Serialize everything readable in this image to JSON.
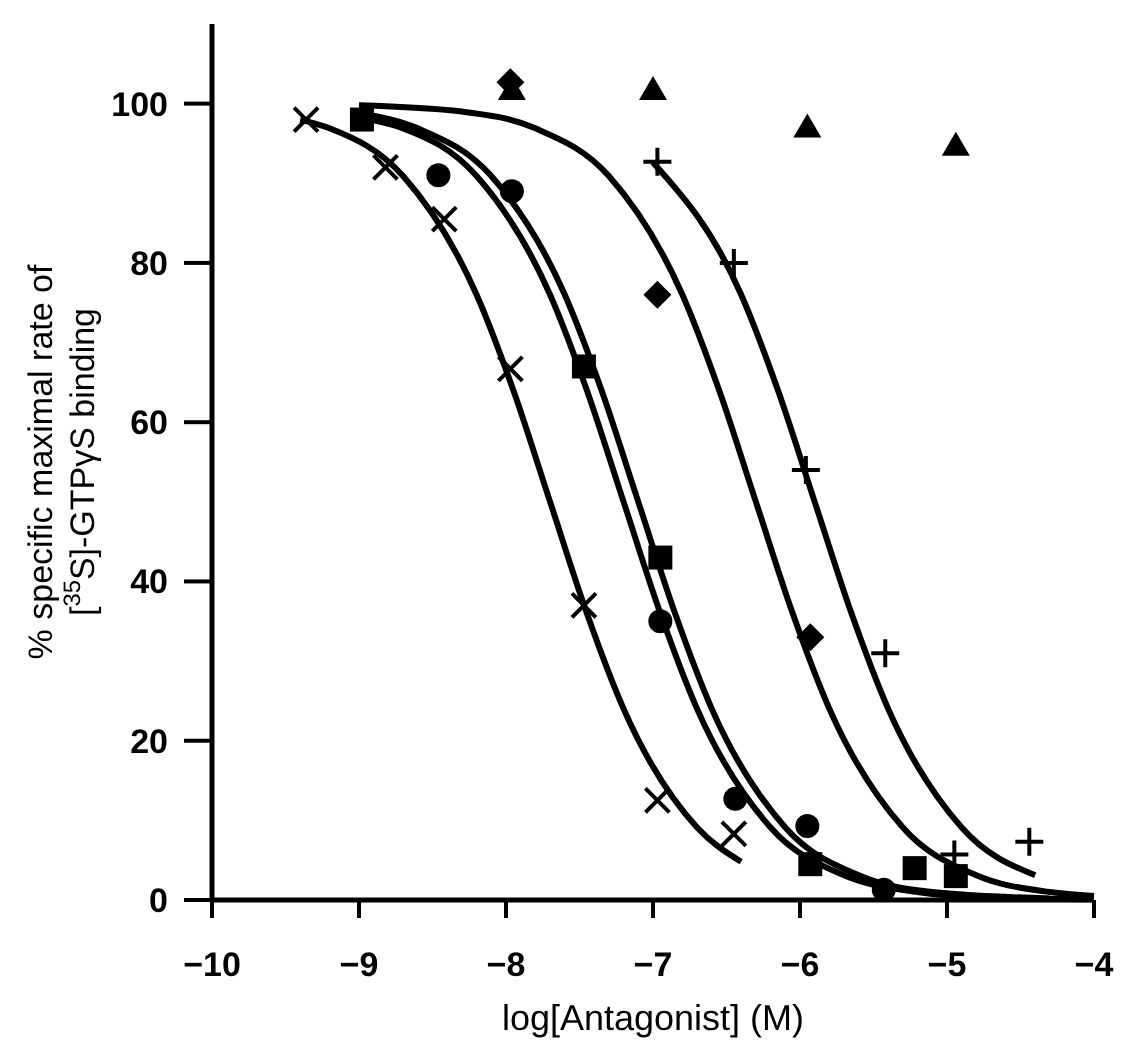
{
  "chart_data": {
    "type": "scatter",
    "xlabel": "log[Antagonist] (M)",
    "ylabel": "% specific maximal rate of\n[$^{35}$S]-GTPγS binding",
    "xlim": [
      -10,
      -4
    ],
    "ylim": [
      0,
      110
    ],
    "xticks": [
      {
        "value": -10,
        "label": "−10"
      },
      {
        "value": -9,
        "label": "−9"
      },
      {
        "value": -8,
        "label": "−8"
      },
      {
        "value": -7,
        "label": "−7"
      },
      {
        "value": -6,
        "label": "−6"
      },
      {
        "value": -5,
        "label": "−5"
      },
      {
        "value": -4,
        "label": "−4"
      }
    ],
    "yticks": [
      0,
      20,
      40,
      60,
      80,
      100
    ],
    "grid": false,
    "series": [
      {
        "marker": "cross",
        "color": "#000000",
        "x": [
          -9.36,
          -8.82,
          -8.42,
          -7.97,
          -7.47,
          -6.97,
          -6.45
        ],
        "values": [
          98,
          92,
          85.5,
          66.7,
          37,
          12.5,
          8.3
        ]
      },
      {
        "marker": "square",
        "color": "#000000",
        "x": [
          -8.98,
          -7.47,
          -6.95,
          -5.93,
          -5.22,
          -4.94
        ],
        "values": [
          98,
          67,
          43,
          4.5,
          4,
          3
        ]
      },
      {
        "marker": "circle",
        "color": "#000000",
        "x": [
          -8.46,
          -7.96,
          -6.95,
          -6.44,
          -5.95,
          -5.43
        ],
        "values": [
          91,
          89,
          35,
          12.7,
          9.3,
          1.3
        ]
      },
      {
        "marker": "diamond",
        "color": "#000000",
        "x": [
          -7.97,
          -6.97,
          -5.93
        ],
        "values": [
          102.7,
          76,
          33
        ]
      },
      {
        "marker": "plus",
        "color": "#000000",
        "x": [
          -6.97,
          -6.45,
          -5.96,
          -5.42,
          -4.95,
          -4.44
        ],
        "values": [
          92.7,
          80,
          54,
          31,
          5.7,
          7.3
        ]
      },
      {
        "marker": "triangle",
        "color": "#000000",
        "x": [
          -7.96,
          -7.0,
          -5.95,
          -4.94
        ],
        "values": [
          101.7,
          101.7,
          97,
          94.7
        ]
      },
      {
        "type": "line",
        "marker": "none",
        "line_style": "solid",
        "color": "#000000",
        "x": [
          -9.4,
          -9.2,
          -8.7,
          -8.2,
          -7.95,
          -7.7,
          -7.45,
          -7.2,
          -6.7,
          -6.4
        ],
        "values": [
          98,
          96.9,
          90.9,
          76,
          64,
          50,
          36,
          24,
          9.1,
          4.8
        ]
      },
      {
        "type": "line",
        "marker": "none",
        "line_style": "solid",
        "color": "#000000",
        "x": [
          -9.0,
          -8.6,
          -8.1,
          -7.6,
          -7.35,
          -7.1,
          -6.85,
          -6.6,
          -6.1,
          -5.6,
          -5.1,
          -4.3
        ],
        "values": [
          98.8,
          96.9,
          90.9,
          76,
          64,
          50,
          36,
          24,
          9.1,
          3.1,
          1.0,
          0.2
        ]
      },
      {
        "type": "line",
        "marker": "none",
        "line_style": "solid",
        "color": "#000000",
        "x": [
          -8.9,
          -8.7,
          -8.2,
          -7.7,
          -7.45,
          -7.2,
          -6.95,
          -6.7,
          -6.2,
          -5.7,
          -5.2,
          -4.7,
          -4.0
        ],
        "values": [
          97.9,
          96.9,
          90.9,
          76,
          64,
          50,
          36,
          24,
          9.1,
          3.1,
          1.0,
          0.3,
          0.1
        ]
      },
      {
        "type": "line",
        "marker": "none",
        "line_style": "solid",
        "color": "#000000",
        "x": [
          -9.0,
          -8.3,
          -7.8,
          -7.3,
          -6.8,
          -6.55,
          -6.3,
          -6.05,
          -5.8,
          -5.3,
          -4.8,
          -4.3,
          -4.0
        ],
        "values": [
          99.8,
          99.0,
          96.9,
          90.9,
          76,
          64,
          50,
          36,
          24,
          9.1,
          3.1,
          1.0,
          0.5
        ]
      },
      {
        "type": "line",
        "marker": "none",
        "line_style": "solid",
        "color": "#000000",
        "x": [
          -7.0,
          -6.4,
          -6.15,
          -5.9,
          -5.65,
          -5.4,
          -4.9,
          -4.4
        ],
        "values": [
          92.6,
          76,
          64,
          50,
          36,
          24,
          9.1,
          3.1
        ]
      }
    ]
  }
}
